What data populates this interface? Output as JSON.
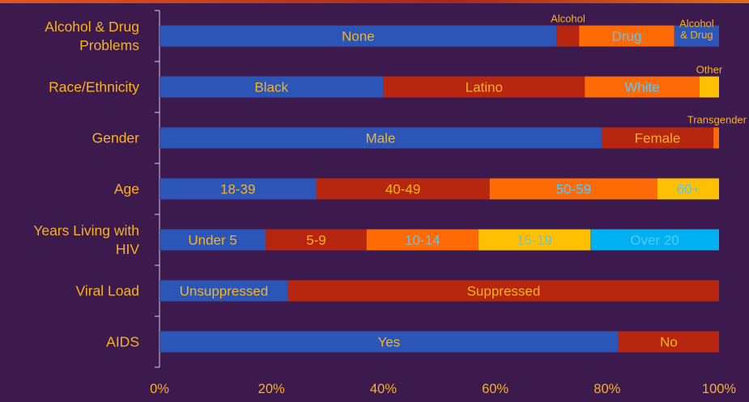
{
  "chart_data": {
    "type": "bar",
    "orientation": "horizontal",
    "stacked": true,
    "title": "",
    "xlabel": "",
    "ylabel": "",
    "xlim": [
      0,
      100
    ],
    "x_ticks": [
      "0%",
      "20%",
      "40%",
      "60%",
      "80%",
      "100%"
    ],
    "grid": false,
    "colors": {
      "blue": "#2c55b8",
      "red": "#b7260f",
      "orange": "#fe6a06",
      "yellow": "#fec003",
      "cyan": "#00b0f0",
      "label_blue": "#56c8ff",
      "label_gold": "#f7b21e",
      "axis": "#d8d0e0",
      "background": "#3c1a4e"
    },
    "categories": [
      {
        "label_lines": [
          "Alcohol & Drug",
          "Problems"
        ],
        "segments": [
          {
            "label": "None",
            "value": 71,
            "color": "blue",
            "label_color": "label_gold"
          },
          {
            "label": "Alcohol",
            "value": 4,
            "color": "red",
            "label_pos": "above"
          },
          {
            "label": "Drug",
            "value": 17,
            "color": "orange",
            "label_color": "label_blue"
          },
          {
            "label_lines": [
              "Alcohol",
              "& Drug"
            ],
            "value": 8,
            "color": "blue",
            "label_color": "label_blue",
            "label_pos": "small"
          }
        ]
      },
      {
        "label_lines": [
          "Race/Ethnicity"
        ],
        "segments": [
          {
            "label": "Black",
            "value": 40,
            "color": "blue",
            "label_color": "label_gold"
          },
          {
            "label": "Latino",
            "value": 36,
            "color": "red",
            "label_color": "label_gold"
          },
          {
            "label": "White",
            "value": 20.5,
            "color": "orange",
            "label_color": "label_blue"
          },
          {
            "label": "Other",
            "value": 3.5,
            "color": "yellow",
            "label_pos": "above"
          }
        ]
      },
      {
        "label_lines": [
          "Gender"
        ],
        "segments": [
          {
            "label": "Male",
            "value": 79,
            "color": "blue",
            "label_color": "label_gold"
          },
          {
            "label": "Female",
            "value": 20,
            "color": "red",
            "label_color": "label_gold"
          },
          {
            "label": "Transgender",
            "value": 1,
            "color": "orange",
            "label_pos": "above-right"
          }
        ]
      },
      {
        "label_lines": [
          "Age"
        ],
        "segments": [
          {
            "label": "18-39",
            "value": 28,
            "color": "blue",
            "label_color": "label_gold"
          },
          {
            "label": "40-49",
            "value": 31,
            "color": "red",
            "label_color": "label_gold"
          },
          {
            "label": "50-59",
            "value": 30,
            "color": "orange",
            "label_color": "label_blue"
          },
          {
            "label": "60+",
            "value": 11,
            "color": "yellow",
            "label_color": "label_blue"
          }
        ]
      },
      {
        "label_lines": [
          "Years Living with",
          "HIV"
        ],
        "segments": [
          {
            "label": "Under 5",
            "value": 19,
            "color": "blue",
            "label_color": "label_gold"
          },
          {
            "label": "5-9",
            "value": 18,
            "color": "red",
            "label_color": "label_gold"
          },
          {
            "label": "10-14",
            "value": 20,
            "color": "orange",
            "label_color": "label_blue"
          },
          {
            "label": "15-19",
            "value": 20,
            "color": "yellow",
            "label_color": "label_blue"
          },
          {
            "label": "Over 20",
            "value": 23,
            "color": "cyan",
            "label_color": "label_blue"
          }
        ]
      },
      {
        "label_lines": [
          "Viral Load"
        ],
        "segments": [
          {
            "label": "Unsuppressed",
            "value": 23,
            "color": "blue",
            "label_color": "label_gold"
          },
          {
            "label": "Suppressed",
            "value": 77,
            "color": "red",
            "label_color": "label_gold"
          }
        ]
      },
      {
        "label_lines": [
          "AIDS"
        ],
        "segments": [
          {
            "label": "Yes",
            "value": 82,
            "color": "blue",
            "label_color": "label_gold"
          },
          {
            "label": "No",
            "value": 18,
            "color": "red",
            "label_color": "label_gold"
          }
        ]
      }
    ]
  }
}
